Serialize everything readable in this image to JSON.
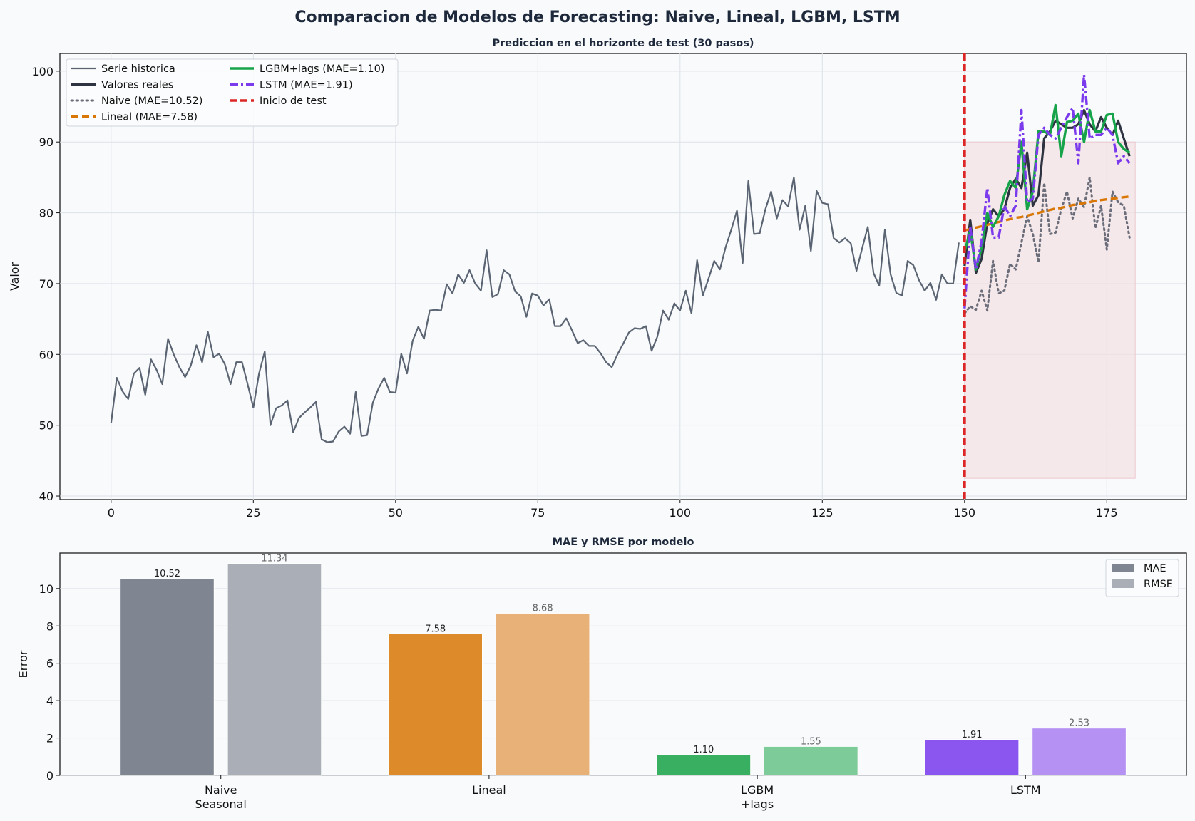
{
  "figure": {
    "suptitle": "Comparacion de Modelos de Forecasting: Naive, Lineal, LGBM, LSTM",
    "background": "#f8fafc"
  },
  "chart_data": [
    {
      "type": "line",
      "title": "Prediccion en el horizonte de test (30 pasos)",
      "xlabel": "",
      "ylabel": "Valor",
      "xlim": [
        -9,
        189
      ],
      "ylim": [
        39.5,
        102.5
      ],
      "xticks": [
        0,
        25,
        50,
        75,
        100,
        125,
        150,
        175
      ],
      "yticks": [
        40,
        50,
        60,
        70,
        80,
        90,
        100
      ],
      "grid": true,
      "legend": {
        "placement": "top-left",
        "columns": 2
      },
      "test_start": 150,
      "test_region": {
        "x": [
          150,
          180
        ],
        "y": [
          42.5,
          90
        ]
      },
      "series": [
        {
          "name": "Serie historica",
          "color": "#5b6472",
          "style": "solid",
          "x_start": 0,
          "values": [
            50.3,
            56.7,
            54.8,
            53.7,
            57.3,
            58.1,
            54.3,
            59.3,
            57.8,
            55.8,
            62.2,
            60.0,
            58.2,
            56.8,
            58.4,
            61.3,
            58.9,
            63.2,
            59.6,
            60.1,
            58.6,
            55.8,
            58.9,
            58.9,
            55.8,
            52.5,
            57.3,
            60.4,
            50.0,
            52.4,
            52.8,
            53.5,
            49.0,
            51.0,
            51.8,
            52.5,
            53.3,
            48.0,
            47.6,
            47.7,
            49.1,
            49.8,
            48.8,
            54.7,
            48.5,
            48.6,
            53.2,
            55.2,
            56.7,
            54.7,
            54.6,
            60.1,
            57.3,
            61.9,
            63.9,
            62.2,
            66.2,
            66.3,
            66.2,
            69.9,
            68.6,
            71.3,
            70.1,
            71.9,
            70.0,
            69.0,
            74.7,
            68.1,
            68.5,
            71.9,
            71.3,
            68.9,
            68.2,
            65.3,
            68.6,
            68.3,
            66.9,
            67.8,
            64.0,
            64.0,
            65.1,
            63.4,
            61.6,
            62.0,
            61.2,
            61.2,
            60.2,
            58.9,
            58.2,
            60.0,
            61.5,
            63.1,
            63.7,
            63.6,
            64.0,
            60.5,
            62.5,
            66.2,
            64.9,
            67.2,
            66.2,
            69.0,
            65.8,
            73.3,
            68.3,
            70.7,
            73.2,
            72.0,
            75.1,
            77.6,
            80.3,
            72.9,
            84.5,
            77.0,
            77.1,
            80.5,
            83.0,
            79.2,
            81.8,
            80.9,
            85.0,
            77.6,
            81.0,
            74.6,
            83.1,
            81.4,
            81.2,
            76.4,
            75.8,
            76.4,
            75.7,
            71.8,
            75.0,
            78.0,
            71.5,
            69.7,
            77.6,
            71.3,
            68.7,
            68.3,
            73.2,
            72.6,
            70.5,
            69.0,
            70.1,
            67.7,
            71.3,
            70.0,
            70.0,
            75.8
          ]
        },
        {
          "name": "Valores reales",
          "color": "#2d3340",
          "style": "solid",
          "x_start": 150,
          "values": [
            72.5,
            79.0,
            71.5,
            73.5,
            78.5,
            80.5,
            79.5,
            80.5,
            83.5,
            84.8,
            83.5,
            88.5,
            81.0,
            82.5,
            90.5,
            91.5,
            93.0,
            92.5,
            92.0,
            92.0,
            92.5,
            94.5,
            92.5,
            91.5,
            93.5,
            92.0,
            91.0,
            93.0,
            90.5,
            88.0
          ]
        },
        {
          "name": "Naive (MAE=10.52)",
          "color": "#6b6e7a",
          "style": "dotted",
          "x_start": 150,
          "values": [
            65.8,
            66.8,
            66.3,
            69.0,
            66.2,
            73.2,
            68.6,
            69.0,
            72.8,
            72.0,
            75.8,
            79.5,
            77.0,
            73.0,
            84.2,
            77.0,
            77.2,
            80.5,
            83.0,
            79.2,
            82.0,
            80.8,
            85.0,
            77.8,
            81.0,
            74.8,
            83.0,
            81.5,
            81.0,
            76.5
          ]
        },
        {
          "name": "Lineal (MAE=7.58)",
          "color": "#d97706",
          "style": "dashed",
          "x_start": 150,
          "values": [
            77.5,
            77.7,
            77.9,
            78.1,
            78.3,
            78.5,
            78.7,
            78.9,
            79.1,
            79.3,
            79.4,
            79.6,
            79.8,
            80.0,
            80.2,
            80.4,
            80.6,
            80.7,
            80.9,
            81.1,
            81.2,
            81.4,
            81.5,
            81.7,
            81.8,
            81.9,
            82.0,
            82.1,
            82.2,
            82.3
          ]
        },
        {
          "name": "LGBM+lags (MAE=1.10)",
          "color": "#16a34a",
          "style": "solid",
          "x_start": 150,
          "values": [
            74.5,
            77.5,
            72.0,
            75.0,
            80.0,
            78.0,
            79.5,
            82.5,
            84.5,
            83.5,
            90.0,
            80.5,
            83.0,
            91.5,
            91.5,
            91.0,
            95.2,
            88.0,
            92.8,
            93.0,
            94.0,
            90.0,
            94.5,
            91.5,
            91.5,
            93.8,
            94.0,
            90.0,
            89.0,
            88.5
          ]
        },
        {
          "name": "LSTM (MAE=1.91)",
          "color": "#7c3aed",
          "style": "dashdot",
          "x_start": 150,
          "values": [
            66.5,
            78.0,
            72.0,
            76.0,
            83.5,
            76.5,
            76.5,
            81.0,
            79.5,
            81.0,
            94.5,
            81.5,
            82.0,
            91.0,
            92.0,
            91.0,
            90.5,
            92.0,
            93.5,
            94.8,
            87.0,
            99.5,
            90.5,
            91.0,
            91.0,
            92.0,
            91.0,
            87.0,
            88.0,
            87.0
          ]
        },
        {
          "name": "Inicio de test",
          "color": "#dc2626",
          "style": "vline",
          "x": 150
        }
      ]
    },
    {
      "type": "bar",
      "title": "MAE y RMSE por modelo",
      "xlabel": "",
      "ylabel": "Error",
      "ylim": [
        0,
        11.9
      ],
      "yticks": [
        0,
        2,
        4,
        6,
        8,
        10
      ],
      "grid": true,
      "legend": {
        "placement": "top-right"
      },
      "categories": [
        "Naive\nSeasonal",
        "Lineal",
        "LGBM\n+lags",
        "LSTM"
      ],
      "series": [
        {
          "name": "MAE",
          "values": [
            10.52,
            7.58,
            1.1,
            1.91
          ],
          "labels": [
            "10.52",
            "7.58",
            "1.10",
            "1.91"
          ],
          "colors": [
            "#7f8692",
            "#dd8a2b",
            "#38af61",
            "#8b55ef"
          ],
          "legend_color": "#7f8692",
          "label_color": "#222222"
        },
        {
          "name": "RMSE",
          "values": [
            11.34,
            8.68,
            1.55,
            2.53
          ],
          "labels": [
            "11.34",
            "8.68",
            "1.55",
            "2.53"
          ],
          "colors": [
            "#aaafb7",
            "#e7b178",
            "#7ccb99",
            "#b491f3"
          ],
          "legend_color": "#aaafb7",
          "label_color": "#666666"
        }
      ]
    }
  ]
}
